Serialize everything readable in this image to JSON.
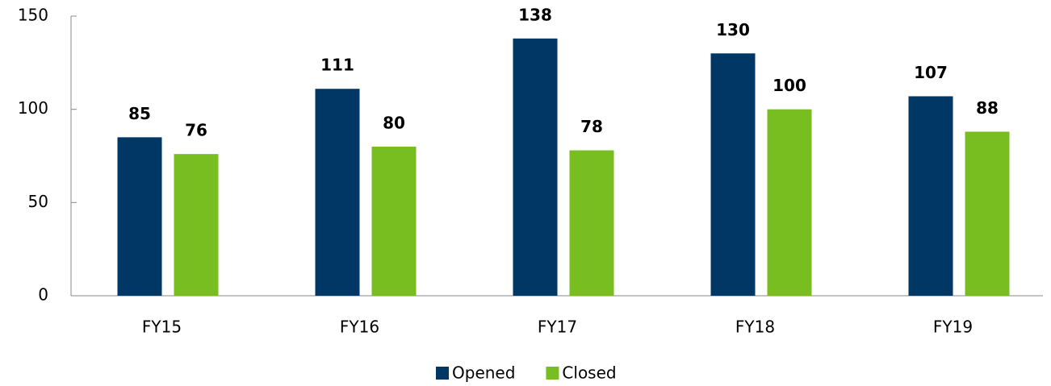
{
  "chart_data": {
    "type": "bar",
    "categories": [
      "FY15",
      "FY16",
      "FY17",
      "FY18",
      "FY19"
    ],
    "series": [
      {
        "name": "Opened",
        "color": "#003764",
        "values": [
          85,
          111,
          138,
          130,
          107
        ]
      },
      {
        "name": "Closed",
        "color": "#78be20",
        "values": [
          76,
          80,
          78,
          100,
          88
        ]
      }
    ],
    "ylim": [
      0,
      150
    ],
    "yticks": [
      0,
      50,
      100,
      150
    ],
    "legend": "bottom"
  }
}
